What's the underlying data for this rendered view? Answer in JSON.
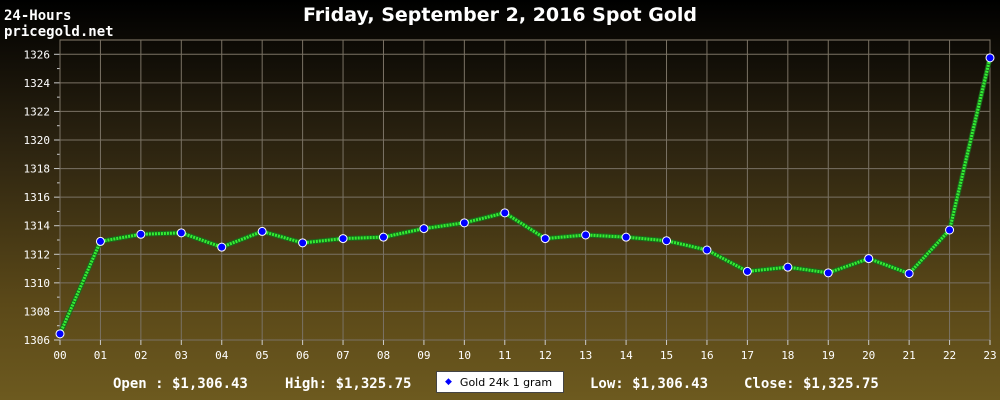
{
  "header": {
    "line1": "24-Hours",
    "line2": "pricegold.net"
  },
  "chart_data": {
    "type": "line",
    "title": "Friday, September 2, 2016 Spot Gold",
    "categories": [
      "00",
      "01",
      "02",
      "03",
      "04",
      "05",
      "06",
      "07",
      "08",
      "09",
      "10",
      "11",
      "12",
      "13",
      "14",
      "15",
      "16",
      "17",
      "18",
      "19",
      "20",
      "21",
      "22",
      "23"
    ],
    "series": [
      {
        "name": "Gold 24k 1 gram",
        "values": [
          1306.43,
          1312.9,
          1313.4,
          1313.5,
          1312.5,
          1313.6,
          1312.8,
          1313.1,
          1313.2,
          1313.8,
          1314.2,
          1314.9,
          1313.1,
          1313.35,
          1313.2,
          1312.95,
          1312.3,
          1310.8,
          1311.1,
          1310.7,
          1311.7,
          1310.65,
          1313.7,
          1325.75
        ],
        "line_color": "#33ee33",
        "marker_color": "#0000ff"
      }
    ],
    "ylim": [
      1306,
      1327
    ],
    "yticks": [
      1306,
      1308,
      1310,
      1312,
      1314,
      1316,
      1318,
      1320,
      1322,
      1324,
      1326
    ],
    "grid": true,
    "legend": "bottom-center"
  },
  "stats": {
    "open": "Open : $1,306.43",
    "high": "High: $1,325.75",
    "low": "Low: $1,306.43",
    "close": "Close: $1,325.75"
  },
  "legend": {
    "label": "Gold 24k 1 gram"
  }
}
